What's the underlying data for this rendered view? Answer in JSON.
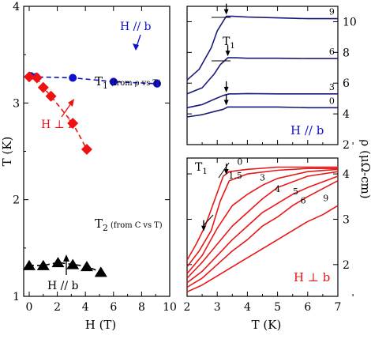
{
  "chart_data": [
    {
      "type": "scatter",
      "panel": "left",
      "xlabel": "H (T)",
      "ylabel": "T (K)",
      "xlim": [
        0,
        10
      ],
      "ylim": [
        1,
        4
      ],
      "xticks": [
        "0",
        "2",
        "4",
        "6",
        "8",
        "10"
      ],
      "yticks": [
        "1",
        "2",
        "3",
        "4"
      ],
      "grid": false,
      "series": [
        {
          "name": "H // b",
          "label": "T1",
          "marker": "circle",
          "color": "#1010cc",
          "line": "dashed",
          "x": [
            0.1,
            0.5,
            3.1,
            6.0,
            9.1
          ],
          "y": [
            3.28,
            3.27,
            3.26,
            3.22,
            3.2
          ]
        },
        {
          "name": "H ⊥ b",
          "label": "T1",
          "marker": "diamond",
          "color": "#ee1111",
          "line": "dashed",
          "x": [
            0.0,
            0.55,
            1.0,
            1.55,
            3.1,
            4.1
          ],
          "y": [
            3.27,
            3.26,
            3.16,
            3.07,
            2.79,
            2.52
          ]
        },
        {
          "name": "H // b",
          "label": "T2",
          "marker": "triangle",
          "color": "#000000",
          "line": "dashed",
          "x": [
            0.0,
            1.0,
            2.05,
            3.1,
            4.1,
            5.1
          ],
          "y": [
            1.32,
            1.32,
            1.35,
            1.33,
            1.31,
            1.25
          ]
        }
      ],
      "annotations": [
        {
          "text": "H // b",
          "color": "#1010cc"
        },
        {
          "text": "T",
          "sub": "1",
          "suffix": "(from ρ vs T)"
        },
        {
          "text": "H ⊥ b",
          "color": "#ee1111"
        },
        {
          "text": "T",
          "sub": "2",
          "suffix": "(from C vs T)"
        },
        {
          "text": "H // b",
          "color": "#000000"
        }
      ]
    },
    {
      "type": "line",
      "panel": "right-top",
      "xlim": [
        2,
        7
      ],
      "ylim": [
        2,
        11
      ],
      "yticks": [
        "2",
        "4",
        "6",
        "8",
        "10"
      ],
      "right_axis_label": "ρ (μΩ-cm)",
      "legend_text": "H // b",
      "legend_color": "#1010cc",
      "t1_label": "T",
      "t1_sub": "1",
      "series": [
        {
          "name": "9",
          "color": "#1a1a7a",
          "x": [
            2.0,
            2.4,
            2.8,
            3.0,
            3.3,
            3.5,
            4.0,
            5.0,
            6.0,
            7.0
          ],
          "y": [
            6.2,
            6.9,
            8.3,
            9.4,
            10.35,
            10.35,
            10.3,
            10.25,
            10.2,
            10.2
          ]
        },
        {
          "name": "6",
          "color": "#1a1a7a",
          "x": [
            2.0,
            2.5,
            2.9,
            3.1,
            3.35,
            3.6,
            4.0,
            5.0,
            6.0,
            7.0
          ],
          "y": [
            5.3,
            5.7,
            6.6,
            7.2,
            7.65,
            7.65,
            7.62,
            7.62,
            7.6,
            7.6
          ]
        },
        {
          "name": "3",
          "color": "#1a1a7a",
          "x": [
            2.0,
            2.5,
            2.9,
            3.2,
            3.4,
            3.6,
            4.0,
            5.0,
            6.0,
            7.0
          ],
          "y": [
            4.4,
            4.6,
            4.95,
            5.2,
            5.3,
            5.3,
            5.32,
            5.3,
            5.3,
            5.3
          ]
        },
        {
          "name": "0",
          "color": "#1a1a7a",
          "x": [
            2.0,
            2.5,
            2.9,
            3.2,
            3.35,
            3.6,
            4.0,
            5.0,
            6.0,
            7.0
          ],
          "y": [
            3.8,
            3.95,
            4.15,
            4.3,
            4.45,
            4.45,
            4.45,
            4.45,
            4.4,
            4.4
          ]
        }
      ],
      "markers": [
        {
          "x": 3.3,
          "y": 10.35
        },
        {
          "x": 3.35,
          "y": 7.65
        },
        {
          "x": 3.3,
          "y": 5.3
        },
        {
          "x": 3.3,
          "y": 4.45
        }
      ]
    },
    {
      "type": "line",
      "panel": "right-bottom",
      "xlabel": "T (K)",
      "xlim": [
        2,
        7
      ],
      "ylim": [
        1.3,
        4.35
      ],
      "xticks": [
        "2",
        "3",
        "4",
        "5",
        "6",
        "7"
      ],
      "yticks": [
        "1",
        "2",
        "3",
        "4"
      ],
      "legend_text": "H ⊥ b",
      "legend_color": "#ee1111",
      "t1_label": "T",
      "t1_sub": "1",
      "series": [
        {
          "name": "0",
          "color": "#e81818",
          "x": [
            2.0,
            2.3,
            2.6,
            2.9,
            3.2,
            3.4,
            4.0,
            5.0,
            6.0,
            7.0
          ],
          "y": [
            2.1,
            2.45,
            2.85,
            3.4,
            3.95,
            4.05,
            4.1,
            4.15,
            4.15,
            4.15
          ]
        },
        {
          "name": "1.5",
          "color": "#e81818",
          "x": [
            2.0,
            2.4,
            2.8,
            3.1,
            3.4,
            4.0,
            5.0,
            6.0,
            7.0
          ],
          "y": [
            1.95,
            2.3,
            2.75,
            3.4,
            3.85,
            4.0,
            4.08,
            4.12,
            4.12
          ]
        },
        {
          "name": "3",
          "color": "#e81818",
          "x": [
            2.0,
            2.5,
            3.0,
            3.5,
            4.0,
            4.5,
            5.0,
            6.0,
            7.0
          ],
          "y": [
            1.8,
            2.2,
            2.8,
            3.3,
            3.55,
            3.75,
            3.9,
            4.05,
            4.1
          ]
        },
        {
          "name": "4",
          "color": "#e81818",
          "x": [
            2.0,
            2.5,
            3.0,
            3.5,
            4.0,
            4.5,
            5.0,
            6.0,
            7.0
          ],
          "y": [
            1.7,
            2.05,
            2.45,
            2.85,
            3.15,
            3.45,
            3.7,
            3.95,
            4.05
          ]
        },
        {
          "name": "5",
          "color": "#e81818",
          "x": [
            2.0,
            2.5,
            3.0,
            3.5,
            4.0,
            4.5,
            5.0,
            5.5,
            6.0,
            7.0
          ],
          "y": [
            1.6,
            1.85,
            2.2,
            2.55,
            2.85,
            3.15,
            3.35,
            3.55,
            3.7,
            3.95
          ]
        },
        {
          "name": "6",
          "color": "#e81818",
          "x": [
            2.0,
            2.5,
            3.0,
            3.5,
            4.0,
            4.5,
            5.0,
            5.5,
            6.0,
            7.0
          ],
          "y": [
            1.5,
            1.7,
            2.0,
            2.3,
            2.55,
            2.85,
            3.05,
            3.3,
            3.5,
            3.85
          ]
        },
        {
          "name": "9",
          "color": "#e81818",
          "x": [
            2.0,
            2.5,
            3.0,
            3.5,
            4.0,
            4.5,
            5.0,
            5.5,
            6.0,
            6.5,
            7.0
          ],
          "y": [
            1.4,
            1.55,
            1.75,
            1.95,
            2.15,
            2.35,
            2.55,
            2.75,
            2.95,
            3.1,
            3.3
          ]
        }
      ],
      "markers": [
        {
          "x": 3.3,
          "y": 3.95
        },
        {
          "x": 2.55,
          "y": 2.7
        }
      ]
    }
  ]
}
